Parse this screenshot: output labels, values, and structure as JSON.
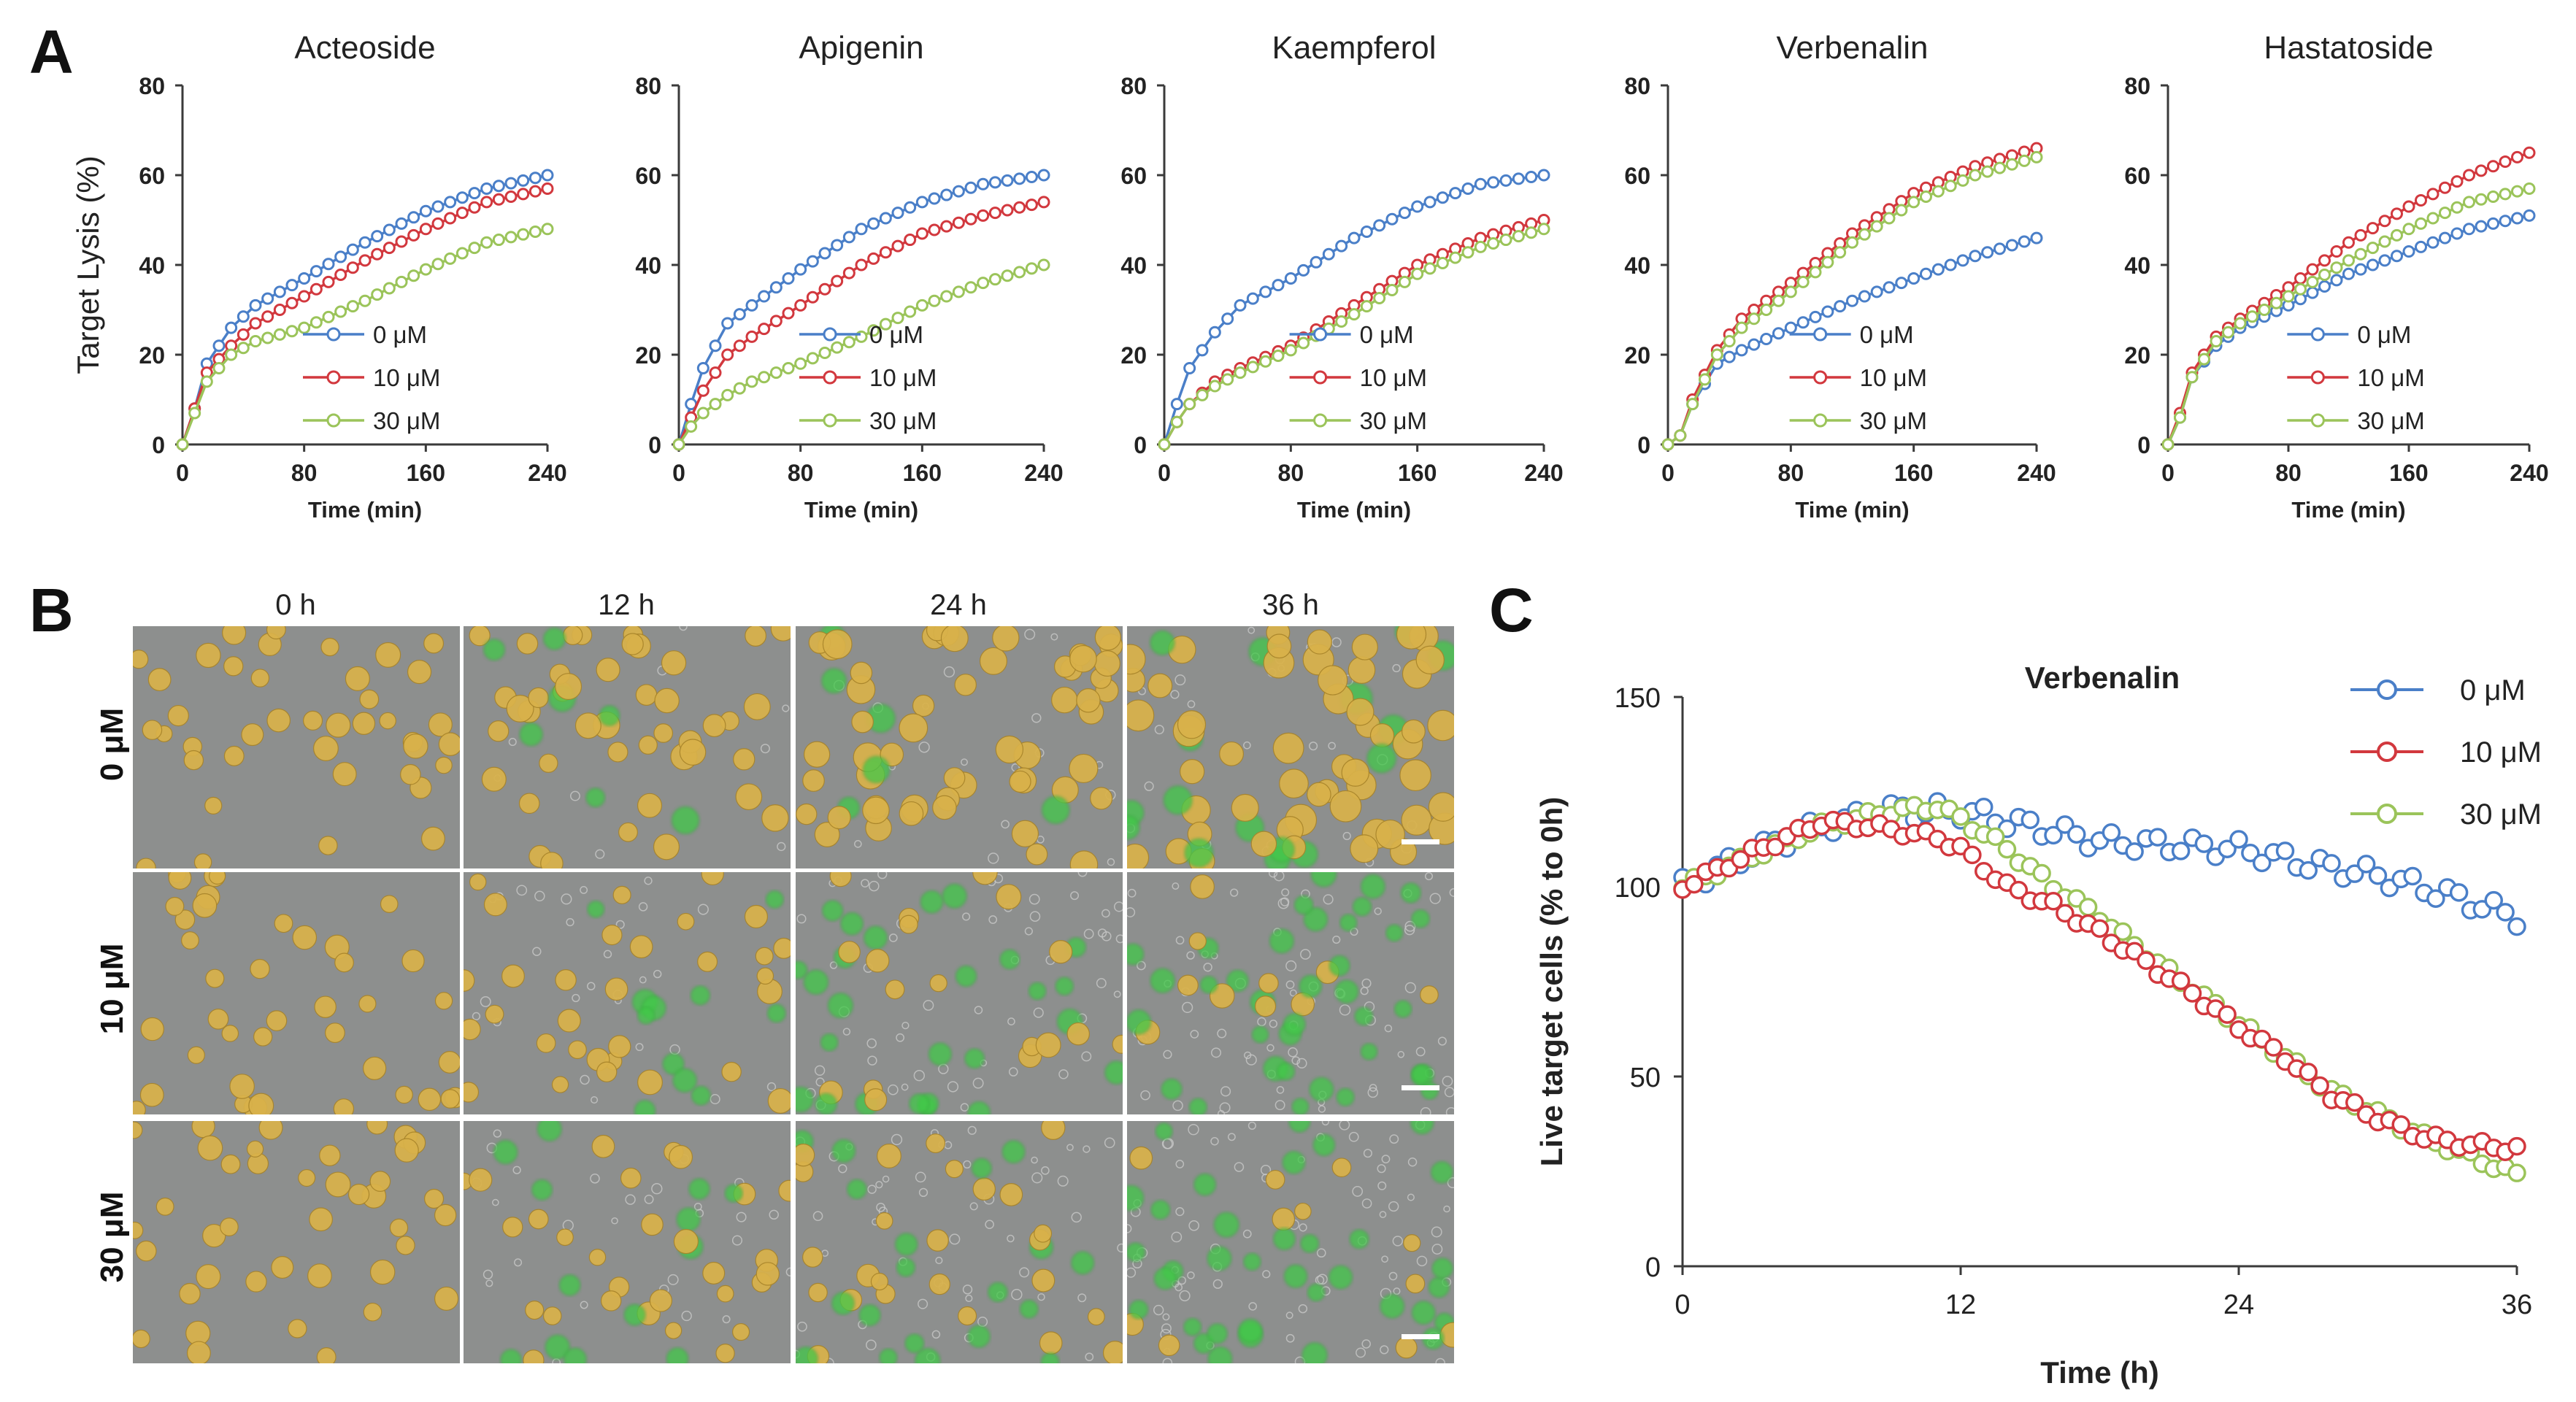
{
  "colors": {
    "series_0uM": "#4a7fc8",
    "series_10uM": "#d2383e",
    "series_30uM": "#9bc45a",
    "axis": "#3a3a3a",
    "text": "#222222",
    "micro_bg": "#8d8f8e",
    "micro_cell": "#d9b24a",
    "micro_green": "#42c84a",
    "micro_debris": "#c8c8c8"
  },
  "panel_labels": {
    "a": "A",
    "b": "B",
    "c": "C"
  },
  "panel_b": {
    "columns": [
      "0 h",
      "12 h",
      "24 h",
      "36 h"
    ],
    "rows": [
      "0 μM",
      "10 μM",
      "30 μM"
    ]
  },
  "chart_data": [
    {
      "type": "line",
      "panel": "A",
      "title": "Acteoside",
      "xlabel": "Time (min)",
      "ylabel": "Target  Lysis (%)",
      "xlim": [
        0,
        240
      ],
      "ylim": [
        0,
        80
      ],
      "xticks": [
        0,
        80,
        160,
        240
      ],
      "yticks": [
        0,
        20,
        40,
        60,
        80
      ],
      "legend": [
        "0 μM",
        "10 μM",
        "30 μM"
      ],
      "anchors": {
        "0uM": [
          [
            0,
            0
          ],
          [
            8,
            8
          ],
          [
            16,
            18
          ],
          [
            32,
            26
          ],
          [
            48,
            31
          ],
          [
            80,
            37
          ],
          [
            120,
            45
          ],
          [
            160,
            52
          ],
          [
            200,
            57
          ],
          [
            240,
            60
          ]
        ],
        "10uM": [
          [
            0,
            0
          ],
          [
            8,
            8
          ],
          [
            16,
            16
          ],
          [
            32,
            22
          ],
          [
            48,
            27
          ],
          [
            80,
            33
          ],
          [
            120,
            41
          ],
          [
            160,
            48
          ],
          [
            200,
            54
          ],
          [
            240,
            57
          ]
        ],
        "30uM": [
          [
            0,
            0
          ],
          [
            8,
            7
          ],
          [
            16,
            14
          ],
          [
            32,
            20
          ],
          [
            48,
            23
          ],
          [
            80,
            26
          ],
          [
            120,
            32
          ],
          [
            160,
            39
          ],
          [
            200,
            45
          ],
          [
            240,
            48
          ]
        ]
      }
    },
    {
      "type": "line",
      "panel": "A",
      "title": "Apigenin",
      "xlabel": "Time (min)",
      "ylabel": "",
      "xlim": [
        0,
        240
      ],
      "ylim": [
        0,
        80
      ],
      "xticks": [
        0,
        80,
        160,
        240
      ],
      "yticks": [
        0,
        20,
        40,
        60,
        80
      ],
      "legend": [
        "0 μM",
        "10 μM",
        "30 μM"
      ],
      "anchors": {
        "0uM": [
          [
            0,
            0
          ],
          [
            8,
            9
          ],
          [
            16,
            17
          ],
          [
            32,
            27
          ],
          [
            48,
            31
          ],
          [
            80,
            39
          ],
          [
            120,
            48
          ],
          [
            160,
            54
          ],
          [
            200,
            58
          ],
          [
            240,
            60
          ]
        ],
        "10uM": [
          [
            0,
            0
          ],
          [
            8,
            6
          ],
          [
            16,
            12
          ],
          [
            32,
            20
          ],
          [
            48,
            24
          ],
          [
            80,
            31
          ],
          [
            120,
            40
          ],
          [
            160,
            47
          ],
          [
            200,
            51
          ],
          [
            240,
            54
          ]
        ],
        "30uM": [
          [
            0,
            0
          ],
          [
            8,
            4
          ],
          [
            16,
            7
          ],
          [
            32,
            11
          ],
          [
            48,
            14
          ],
          [
            80,
            18
          ],
          [
            120,
            24
          ],
          [
            160,
            31
          ],
          [
            200,
            36
          ],
          [
            240,
            40
          ]
        ]
      }
    },
    {
      "type": "line",
      "panel": "A",
      "title": "Kaempferol",
      "xlabel": "Time (min)",
      "ylabel": "",
      "xlim": [
        0,
        240
      ],
      "ylim": [
        0,
        80
      ],
      "xticks": [
        0,
        80,
        160,
        240
      ],
      "yticks": [
        0,
        20,
        40,
        60,
        80
      ],
      "legend": [
        "0 μM",
        "10 μM",
        "30 μM"
      ],
      "anchors": {
        "0uM": [
          [
            0,
            0
          ],
          [
            8,
            9
          ],
          [
            16,
            17
          ],
          [
            32,
            25
          ],
          [
            48,
            31
          ],
          [
            80,
            37
          ],
          [
            120,
            46
          ],
          [
            160,
            53
          ],
          [
            200,
            58
          ],
          [
            240,
            60
          ]
        ],
        "10uM": [
          [
            0,
            0
          ],
          [
            8,
            5
          ],
          [
            16,
            9
          ],
          [
            32,
            14
          ],
          [
            48,
            17
          ],
          [
            80,
            22
          ],
          [
            120,
            31
          ],
          [
            160,
            40
          ],
          [
            200,
            46
          ],
          [
            240,
            50
          ]
        ],
        "30uM": [
          [
            0,
            0
          ],
          [
            8,
            5
          ],
          [
            16,
            9
          ],
          [
            32,
            13
          ],
          [
            48,
            16
          ],
          [
            80,
            21
          ],
          [
            120,
            29
          ],
          [
            160,
            38
          ],
          [
            200,
            44
          ],
          [
            240,
            48
          ]
        ]
      }
    },
    {
      "type": "line",
      "panel": "A",
      "title": "Verbenalin",
      "xlabel": "Time (min)",
      "ylabel": "",
      "xlim": [
        0,
        240
      ],
      "ylim": [
        0,
        80
      ],
      "xticks": [
        0,
        80,
        160,
        240
      ],
      "yticks": [
        0,
        20,
        40,
        60,
        80
      ],
      "legend": [
        "0 μM",
        "10 μM",
        "30 μM"
      ],
      "anchors": {
        "0uM": [
          [
            0,
            0
          ],
          [
            8,
            2
          ],
          [
            16,
            9
          ],
          [
            32,
            18
          ],
          [
            48,
            21
          ],
          [
            80,
            26
          ],
          [
            120,
            32
          ],
          [
            160,
            37
          ],
          [
            200,
            42
          ],
          [
            240,
            46
          ]
        ],
        "10uM": [
          [
            0,
            0
          ],
          [
            8,
            2
          ],
          [
            16,
            10
          ],
          [
            32,
            21
          ],
          [
            48,
            28
          ],
          [
            80,
            36
          ],
          [
            120,
            47
          ],
          [
            160,
            56
          ],
          [
            200,
            62
          ],
          [
            240,
            66
          ]
        ],
        "30uM": [
          [
            0,
            0
          ],
          [
            8,
            2
          ],
          [
            16,
            9
          ],
          [
            32,
            20
          ],
          [
            48,
            26
          ],
          [
            80,
            34
          ],
          [
            120,
            45
          ],
          [
            160,
            54
          ],
          [
            200,
            60
          ],
          [
            240,
            64
          ]
        ]
      }
    },
    {
      "type": "line",
      "panel": "A",
      "title": "Hastatoside",
      "xlabel": "Time (min)",
      "ylabel": "",
      "xlim": [
        0,
        240
      ],
      "ylim": [
        0,
        80
      ],
      "xticks": [
        0,
        80,
        160,
        240
      ],
      "yticks": [
        0,
        20,
        40,
        60,
        80
      ],
      "legend": [
        "0 μM",
        "10 μM",
        "30 μM"
      ],
      "anchors": {
        "0uM": [
          [
            0,
            0
          ],
          [
            8,
            6
          ],
          [
            16,
            15
          ],
          [
            32,
            22
          ],
          [
            48,
            26
          ],
          [
            80,
            31
          ],
          [
            120,
            38
          ],
          [
            160,
            43
          ],
          [
            200,
            48
          ],
          [
            240,
            51
          ]
        ],
        "10uM": [
          [
            0,
            0
          ],
          [
            8,
            7
          ],
          [
            16,
            16
          ],
          [
            32,
            24
          ],
          [
            48,
            28
          ],
          [
            80,
            35
          ],
          [
            120,
            45
          ],
          [
            160,
            53
          ],
          [
            200,
            60
          ],
          [
            240,
            65
          ]
        ],
        "30uM": [
          [
            0,
            0
          ],
          [
            8,
            6
          ],
          [
            16,
            15
          ],
          [
            32,
            23
          ],
          [
            48,
            27
          ],
          [
            80,
            33
          ],
          [
            120,
            41
          ],
          [
            160,
            48
          ],
          [
            200,
            54
          ],
          [
            240,
            57
          ]
        ]
      }
    },
    {
      "type": "scatter",
      "panel": "C",
      "title": "Verbenalin",
      "xlabel": "Time (h)",
      "ylabel": "Live target cells (% to 0h)",
      "xlim": [
        0,
        36
      ],
      "ylim": [
        0,
        150
      ],
      "xticks": [
        0,
        12,
        24,
        36
      ],
      "yticks": [
        0,
        50,
        100,
        150
      ],
      "legend": [
        "0 μM",
        "10 μM",
        "30 μM"
      ],
      "anchors": {
        "0uM": [
          [
            0,
            100
          ],
          [
            3,
            109
          ],
          [
            6,
            116
          ],
          [
            9,
            120
          ],
          [
            12,
            120
          ],
          [
            15,
            116
          ],
          [
            18,
            112
          ],
          [
            21,
            111
          ],
          [
            24,
            110
          ],
          [
            27,
            106
          ],
          [
            30,
            103
          ],
          [
            33,
            98
          ],
          [
            36,
            92
          ]
        ],
        "10uM": [
          [
            0,
            100
          ],
          [
            3,
            109
          ],
          [
            6,
            117
          ],
          [
            8,
            116
          ],
          [
            11,
            113
          ],
          [
            12,
            110
          ],
          [
            14,
            100
          ],
          [
            16,
            95
          ],
          [
            18,
            88
          ],
          [
            20,
            80
          ],
          [
            22,
            72
          ],
          [
            24,
            63
          ],
          [
            26,
            55
          ],
          [
            28,
            45
          ],
          [
            30,
            39
          ],
          [
            32,
            34
          ],
          [
            34,
            32
          ],
          [
            36,
            31
          ]
        ],
        "30uM": [
          [
            0,
            100
          ],
          [
            3,
            108
          ],
          [
            6,
            116
          ],
          [
            9,
            120
          ],
          [
            11,
            121
          ],
          [
            12,
            118
          ],
          [
            14,
            110
          ],
          [
            16,
            100
          ],
          [
            18,
            92
          ],
          [
            20,
            82
          ],
          [
            22,
            73
          ],
          [
            24,
            64
          ],
          [
            26,
            55
          ],
          [
            28,
            46
          ],
          [
            30,
            40
          ],
          [
            32,
            34
          ],
          [
            34,
            29
          ],
          [
            36,
            24
          ]
        ]
      }
    }
  ]
}
